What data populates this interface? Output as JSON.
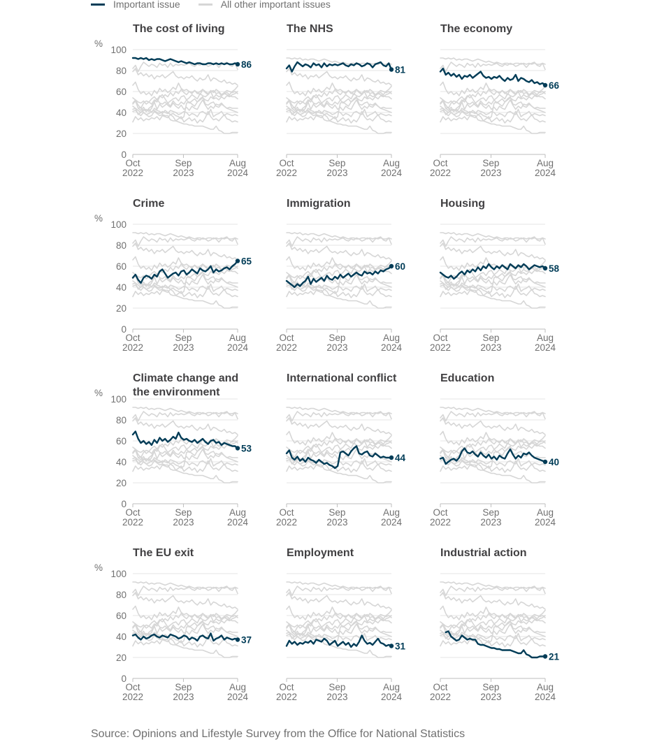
{
  "legend": {
    "important": {
      "label": "Important issue",
      "color": "#003c57"
    },
    "other": {
      "label": "All other important issues",
      "color": "#d6d6d6"
    }
  },
  "source": "Source: Opinions and Lifestyle Survey from the Office for National Statistics",
  "chart_data": {
    "type": "line",
    "layout": "small-multiples",
    "y_unit": "%",
    "ylim": [
      0,
      100
    ],
    "y_ticks": [
      0,
      20,
      40,
      60,
      80,
      100
    ],
    "x_ticks": [
      {
        "line1": "Oct",
        "line2": "2022",
        "position": 0
      },
      {
        "line1": "Sep",
        "line2": "2023",
        "position": 0.483
      },
      {
        "line1": "Aug",
        "line2": "2024",
        "position": 1
      }
    ],
    "grid": true,
    "panels": [
      {
        "title": [
          "The cost of living"
        ],
        "end_value": "86",
        "values": [
          92,
          92,
          91,
          92,
          91,
          92,
          90,
          91,
          90,
          91,
          91,
          90,
          89,
          90,
          91,
          90,
          89,
          88,
          89,
          88,
          87,
          88,
          87,
          86,
          87,
          87,
          86,
          86,
          87,
          87,
          86,
          87,
          86,
          87,
          86,
          87,
          86,
          86,
          87,
          86
        ]
      },
      {
        "title": [
          "The NHS"
        ],
        "end_value": "81",
        "values": [
          82,
          85,
          79,
          84,
          88,
          86,
          84,
          86,
          85,
          83,
          87,
          85,
          86,
          83,
          87,
          84,
          86,
          85,
          86,
          85,
          86,
          87,
          85,
          84,
          86,
          85,
          87,
          86,
          84,
          85,
          87,
          86,
          83,
          86,
          87,
          88,
          85,
          84,
          87,
          81
        ]
      },
      {
        "title": [
          "The economy"
        ],
        "end_value": "66",
        "values": [
          79,
          82,
          76,
          78,
          75,
          77,
          74,
          76,
          72,
          75,
          74,
          76,
          73,
          75,
          77,
          79,
          75,
          73,
          74,
          72,
          74,
          73,
          75,
          72,
          70,
          73,
          71,
          72,
          76,
          70,
          73,
          72,
          70,
          69,
          71,
          68,
          69,
          67,
          68,
          66
        ]
      },
      {
        "title": [
          "Crime"
        ],
        "end_value": "65",
        "values": [
          49,
          52,
          47,
          44,
          49,
          51,
          50,
          48,
          52,
          50,
          55,
          57,
          53,
          49,
          51,
          53,
          54,
          51,
          55,
          56,
          52,
          54,
          57,
          55,
          53,
          58,
          56,
          55,
          57,
          60,
          54,
          57,
          55,
          56,
          58,
          59,
          57,
          60,
          62,
          65
        ]
      },
      {
        "title": [
          "Immigration"
        ],
        "end_value": "60",
        "values": [
          46,
          44,
          42,
          40,
          43,
          41,
          44,
          46,
          50,
          43,
          48,
          45,
          47,
          49,
          46,
          51,
          48,
          47,
          50,
          48,
          52,
          49,
          51,
          53,
          50,
          52,
          54,
          52,
          51,
          55,
          53,
          54,
          52,
          55,
          53,
          56,
          55,
          57,
          58,
          60
        ]
      },
      {
        "title": [
          "Housing"
        ],
        "end_value": "58",
        "values": [
          54,
          52,
          50,
          49,
          51,
          48,
          50,
          53,
          55,
          52,
          56,
          54,
          57,
          55,
          59,
          56,
          60,
          58,
          62,
          59,
          57,
          60,
          58,
          61,
          59,
          57,
          62,
          60,
          58,
          61,
          59,
          62,
          60,
          57,
          59,
          61,
          60,
          59,
          60,
          58
        ]
      },
      {
        "title": [
          "Climate change and",
          "the environment"
        ],
        "end_value": "53",
        "values": [
          66,
          69,
          62,
          58,
          60,
          57,
          59,
          56,
          61,
          58,
          63,
          60,
          62,
          59,
          61,
          64,
          62,
          68,
          63,
          61,
          62,
          60,
          59,
          61,
          58,
          60,
          62,
          59,
          57,
          60,
          61,
          58,
          59,
          56,
          58,
          57,
          56,
          55,
          55,
          53
        ]
      },
      {
        "title": [
          "International conflict"
        ],
        "end_value": "44",
        "values": [
          48,
          51,
          44,
          42,
          45,
          41,
          43,
          40,
          44,
          42,
          41,
          39,
          42,
          40,
          38,
          39,
          37,
          36,
          34,
          36,
          49,
          50,
          48,
          46,
          50,
          53,
          55,
          48,
          47,
          49,
          50,
          46,
          45,
          48,
          46,
          44,
          45,
          44,
          44,
          44
        ]
      },
      {
        "title": [
          "Education"
        ],
        "end_value": "40",
        "values": [
          43,
          44,
          38,
          40,
          42,
          43,
          41,
          44,
          50,
          53,
          49,
          48,
          50,
          47,
          45,
          49,
          46,
          44,
          47,
          43,
          45,
          42,
          46,
          44,
          43,
          48,
          52,
          47,
          43,
          46,
          44,
          48,
          47,
          49,
          46,
          44,
          43,
          42,
          41,
          40
        ]
      },
      {
        "title": [
          "The EU exit"
        ],
        "end_value": "37",
        "values": [
          41,
          42,
          39,
          37,
          40,
          38,
          39,
          41,
          42,
          40,
          39,
          41,
          40,
          39,
          42,
          41,
          40,
          38,
          39,
          41,
          40,
          37,
          39,
          38,
          36,
          40,
          41,
          39,
          38,
          43,
          36,
          38,
          39,
          41,
          37,
          39,
          38,
          37,
          38,
          37
        ]
      },
      {
        "title": [
          "Employment"
        ],
        "end_value": "31",
        "values": [
          31,
          36,
          33,
          35,
          32,
          34,
          33,
          35,
          34,
          36,
          33,
          37,
          36,
          35,
          38,
          36,
          32,
          34,
          36,
          31,
          33,
          35,
          32,
          34,
          30,
          33,
          31,
          35,
          41,
          36,
          33,
          34,
          32,
          35,
          38,
          34,
          33,
          31,
          32,
          31
        ]
      },
      {
        "title": [
          "Industrial action"
        ],
        "end_value": "21",
        "values": [
          null,
          null,
          44,
          45,
          40,
          38,
          36,
          37,
          41,
          39,
          37,
          38,
          37,
          37,
          33,
          32,
          32,
          31,
          30,
          29,
          29,
          28,
          28,
          27,
          27,
          27,
          27,
          26,
          25,
          24,
          24,
          27,
          23,
          22,
          20,
          20,
          20,
          21,
          21,
          21
        ]
      }
    ]
  }
}
